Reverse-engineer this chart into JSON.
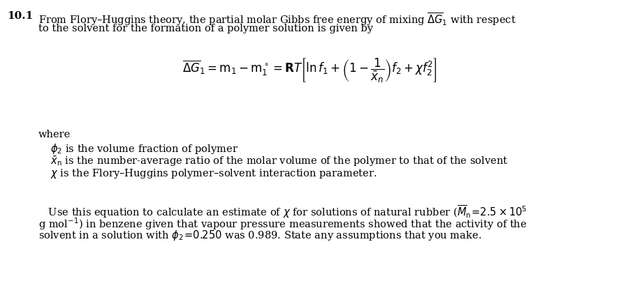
{
  "background_color": "#ffffff",
  "fig_width": 8.86,
  "fig_height": 4.14,
  "dpi": 100,
  "text_color": "#000000",
  "font_family": "serif",
  "number_label": "10.1",
  "number_fontsize": 11,
  "number_fontweight": "bold",
  "body_fontsize": 10.5,
  "equation_fontsize": 12,
  "paragraph1_lines": [
    "From Flory–Huggins theory, the partial molar Gibbs free energy of mixing $\\overline{\\Delta G}_1$ with respect",
    "to the solvent for the formation of a polymer solution is given by"
  ],
  "equation_str": "$\\overline{\\Delta G}_1 = \\mathrm{m}_1 - \\mathrm{m}_1^\\circ = \\mathbf{R}\\mathit{T}\\left[\\ln f_1+\\left(1-\\dfrac{1}{\\bar{x}_n}\\right)f_2+ \\chi f_2^2\\right]$",
  "where_label": "where",
  "bullet1_str": "$\\phi_2$ is the volume fraction of polymer",
  "bullet2_str": "$\\bar{x}_\\mathrm{n}$ is the number-average ratio of the molar volume of the polymer to that of the solvent",
  "bullet3_str": "$\\chi$ is the Flory–Huggins polymer–solvent interaction parameter.",
  "paragraph2_lines": [
    "   Use this equation to calculate an estimate of $\\chi$ for solutions of natural rubber ($\\overline{M}_\\mathrm{n}\\!=\\!2.5\\times10^5$",
    "g mol$^{-1}$) in benzene given that vapour pressure measurements showed that the activity of the",
    "solvent in a solution with $\\phi_2\\!=\\!0.250$ was 0.989. State any assumptions that you make."
  ]
}
